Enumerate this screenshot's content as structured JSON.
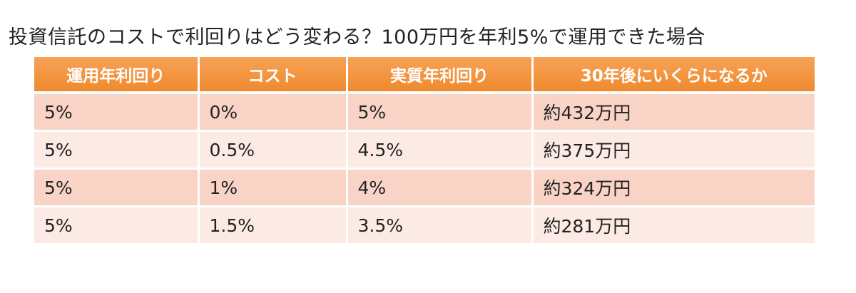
{
  "title": "投資信託のコストで利回りはどう変わる？100万円を年利5%で運用できた場合",
  "table": {
    "header": [
      "運用年利回り",
      "コスト",
      "実質年利回り",
      "30年後にいくらになるか"
    ],
    "rows": [
      [
        "5%",
        "0%",
        "5%",
        "約432万円"
      ],
      [
        "5%",
        "0.5%",
        "4.5%",
        "約375万円"
      ],
      [
        "5%",
        "1%",
        "4%",
        "約324万円"
      ],
      [
        "5%",
        "1.5%",
        "3.5%",
        "約281万円"
      ]
    ]
  }
}
